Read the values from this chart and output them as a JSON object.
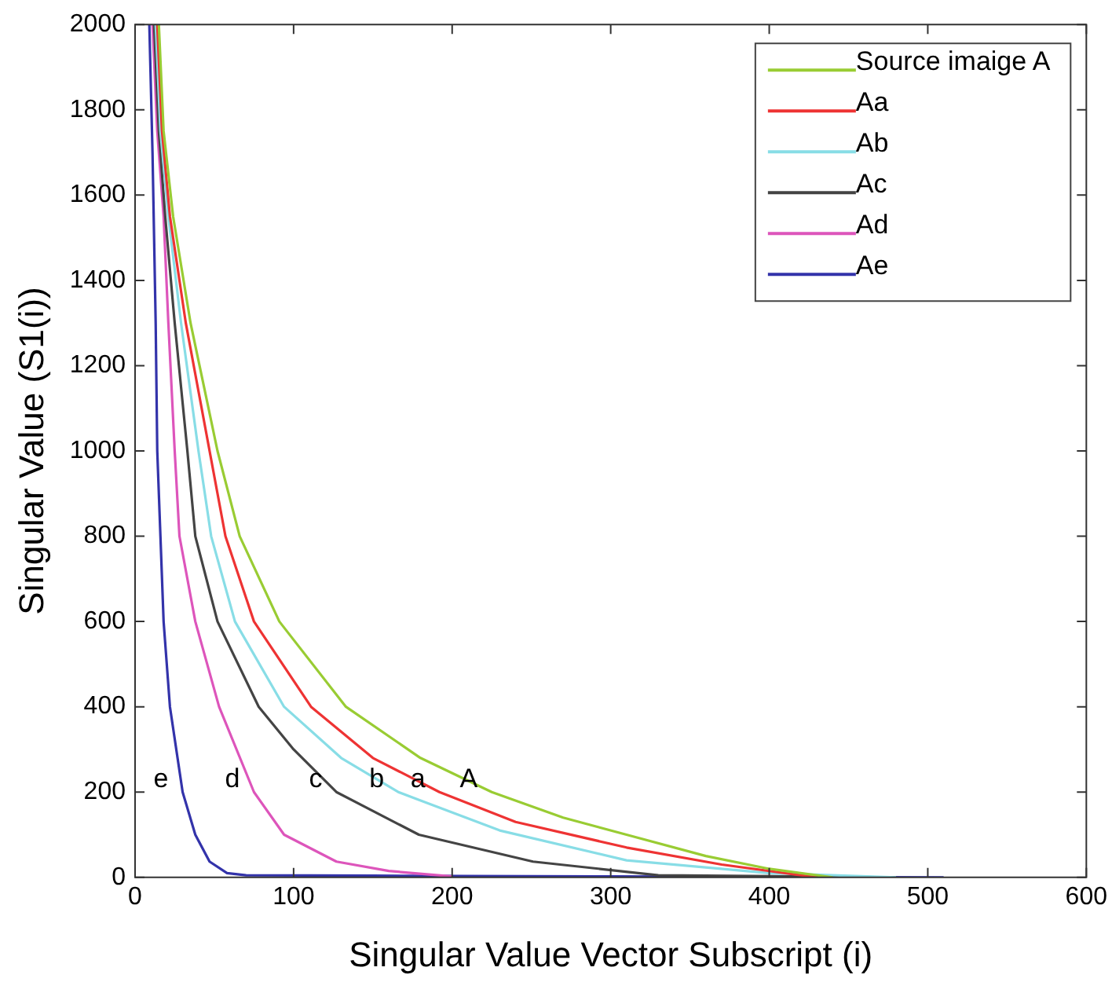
{
  "chart_data": {
    "type": "line",
    "xlabel": "Singular Value Vector Subscript (i)",
    "ylabel": "Singular Value (S1(i))",
    "xlim": [
      0,
      600
    ],
    "xticks": [
      0,
      100,
      200,
      300,
      400,
      500,
      600
    ],
    "ylim": [
      0,
      2000
    ],
    "yticks": [
      0,
      200,
      400,
      600,
      800,
      1000,
      1200,
      1400,
      1600,
      1800,
      2000
    ],
    "grid": false,
    "legend": "top right",
    "marker": "none",
    "line_style": "solid",
    "series": [
      {
        "name": "Source imaige A",
        "color": "#99cc33",
        "x": [
          15,
          18,
          24,
          35,
          52,
          66,
          91,
          133,
          180,
          225,
          270,
          310,
          360,
          400,
          440
        ],
        "values": [
          2000,
          1750,
          1550,
          1300,
          1000,
          800,
          600,
          400,
          280,
          200,
          140,
          100,
          50,
          20,
          0
        ]
      },
      {
        "name": "Aa",
        "color": "#ee3333",
        "x": [
          14,
          17,
          22,
          32,
          47,
          57,
          75,
          111,
          150,
          192,
          240,
          310,
          370,
          430
        ],
        "values": [
          2000,
          1750,
          1550,
          1300,
          1000,
          800,
          600,
          400,
          280,
          200,
          130,
          70,
          30,
          0
        ]
      },
      {
        "name": "Ab",
        "color": "#88dde6",
        "x": [
          13,
          16,
          21,
          29,
          40,
          48,
          63,
          94,
          130,
          166,
          230,
          310,
          400,
          480
        ],
        "values": [
          2000,
          1750,
          1550,
          1300,
          1000,
          800,
          600,
          400,
          280,
          200,
          110,
          40,
          10,
          0
        ]
      },
      {
        "name": "Ac",
        "color": "#444444",
        "x": [
          12,
          15,
          19,
          25,
          33,
          38,
          52,
          78,
          100,
          127,
          179,
          251,
          330,
          480
        ],
        "values": [
          2000,
          1750,
          1550,
          1300,
          1000,
          800,
          600,
          400,
          300,
          200,
          100,
          37,
          5,
          0
        ]
      },
      {
        "name": "Ad",
        "color": "#dd55bb",
        "x": [
          11,
          14,
          18,
          21,
          25,
          28,
          38,
          53,
          75,
          94,
          127,
          160,
          200
        ],
        "values": [
          2000,
          1750,
          1550,
          1300,
          1000,
          800,
          600,
          400,
          200,
          100,
          37,
          15,
          2
        ]
      },
      {
        "name": "Ae",
        "color": "#3333aa",
        "x": [
          9,
          11,
          13,
          14,
          16,
          18,
          22,
          30,
          38,
          47,
          58,
          70,
          150,
          300,
          510
        ],
        "values": [
          2000,
          1700,
          1300,
          1000,
          800,
          600,
          400,
          200,
          100,
          37,
          10,
          5,
          4,
          2,
          0
        ]
      }
    ],
    "annotations": [
      {
        "text": "e",
        "x": 30,
        "y": 200
      },
      {
        "text": "d",
        "x": 75,
        "y": 200
      },
      {
        "text": "c",
        "x": 127,
        "y": 200
      },
      {
        "text": "b",
        "x": 166,
        "y": 200
      },
      {
        "text": "a",
        "x": 192,
        "y": 200
      },
      {
        "text": "A",
        "x": 225,
        "y": 200
      }
    ]
  }
}
